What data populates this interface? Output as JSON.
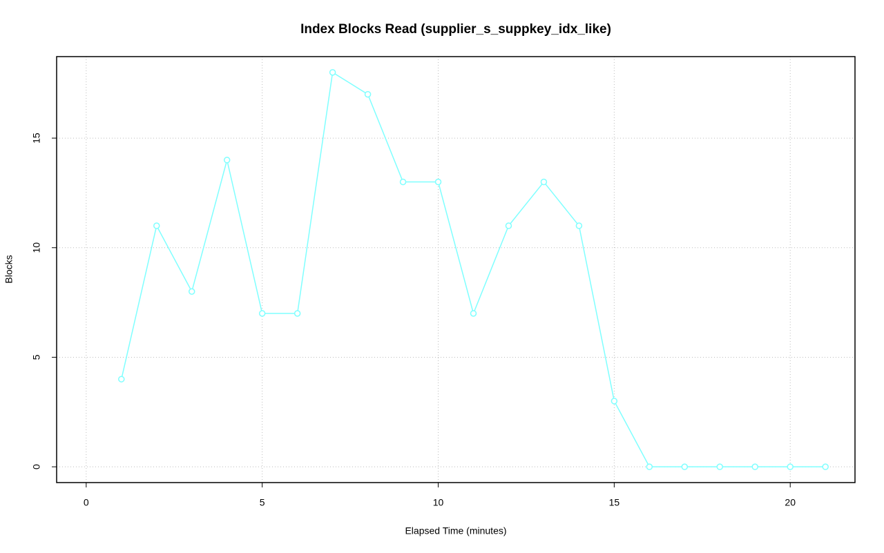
{
  "chart_data": {
    "type": "line",
    "title": "Index Blocks Read (supplier_s_suppkey_idx_like)",
    "x_label": "Elapsed Time (minutes)",
    "y_label": "Blocks",
    "x": [
      1,
      2,
      3,
      4,
      5,
      6,
      7,
      8,
      9,
      10,
      11,
      12,
      13,
      14,
      15,
      16,
      17,
      18,
      19,
      20,
      21
    ],
    "series": [
      {
        "color": "#7fffff",
        "values": [
          4,
          11,
          8,
          14,
          7,
          7,
          18,
          17,
          13,
          13,
          7,
          11,
          13,
          11,
          3,
          0,
          0,
          0,
          0,
          0,
          0
        ]
      }
    ],
    "xlim": [
      -0.84,
      21.84
    ],
    "xticks": [
      0,
      5,
      10,
      15,
      20
    ],
    "ylim": [
      -0.72,
      18.72
    ],
    "yticks": [
      0,
      5,
      10,
      15
    ],
    "grid": true
  }
}
